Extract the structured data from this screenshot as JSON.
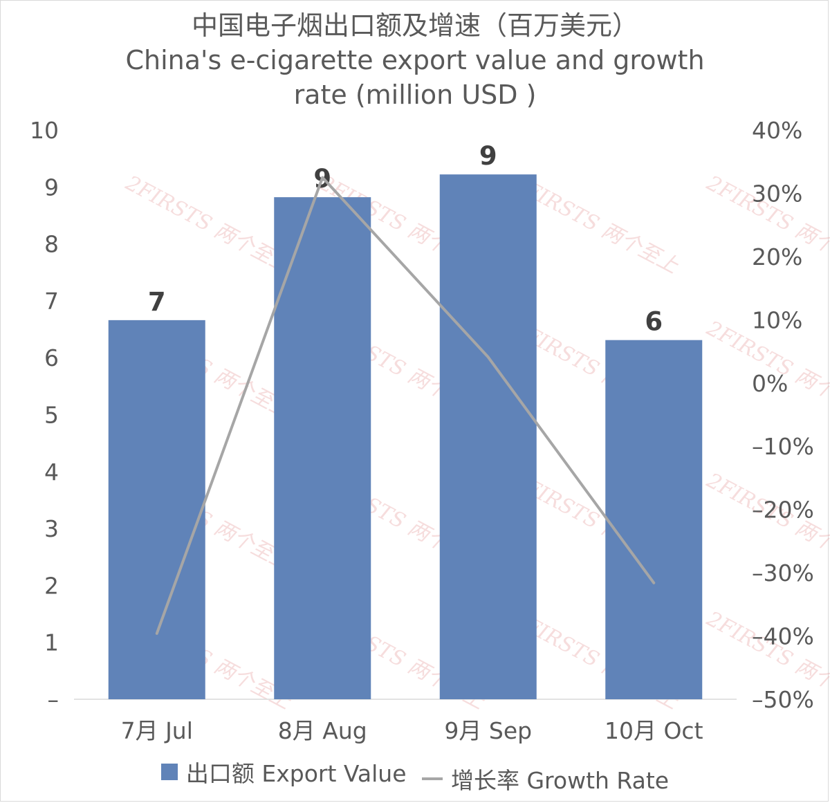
{
  "chart_data": {
    "type": "bar+line",
    "title": "中国电子烟出口额及增速（百万美元）",
    "subtitle_line1": "China's e-cigarette export value and growth",
    "subtitle_line2": "rate (million USD )",
    "categories": [
      "7月 Jul",
      "8月 Aug",
      "9月 Sep",
      "10月 Oct"
    ],
    "series": [
      {
        "name": "出口额 Export Value",
        "type": "bar",
        "axis": "left",
        "values": [
          6.66,
          8.82,
          9.22,
          6.31
        ],
        "data_labels": [
          "7",
          "9",
          "9",
          "6"
        ],
        "color": "#6083b8"
      },
      {
        "name": "增长率 Growth Rate",
        "type": "line",
        "axis": "right",
        "values": [
          -0.396,
          0.325,
          0.041,
          -0.316
        ],
        "color": "#a6a6a6"
      }
    ],
    "y_left": {
      "ylim": [
        0,
        10
      ],
      "ticks": [
        "–",
        "1",
        "2",
        "3",
        "4",
        "5",
        "6",
        "7",
        "8",
        "9",
        "10"
      ]
    },
    "y_right": {
      "ylim": [
        -0.5,
        0.4
      ],
      "ticks": [
        "–50%",
        "–40%",
        "–30%",
        "–20%",
        "–10%",
        "0%",
        "10%",
        "20%",
        "30%",
        "40%"
      ]
    },
    "grid": false,
    "legend_position": "bottom",
    "watermark": "2FIRSTS 两个至上"
  }
}
